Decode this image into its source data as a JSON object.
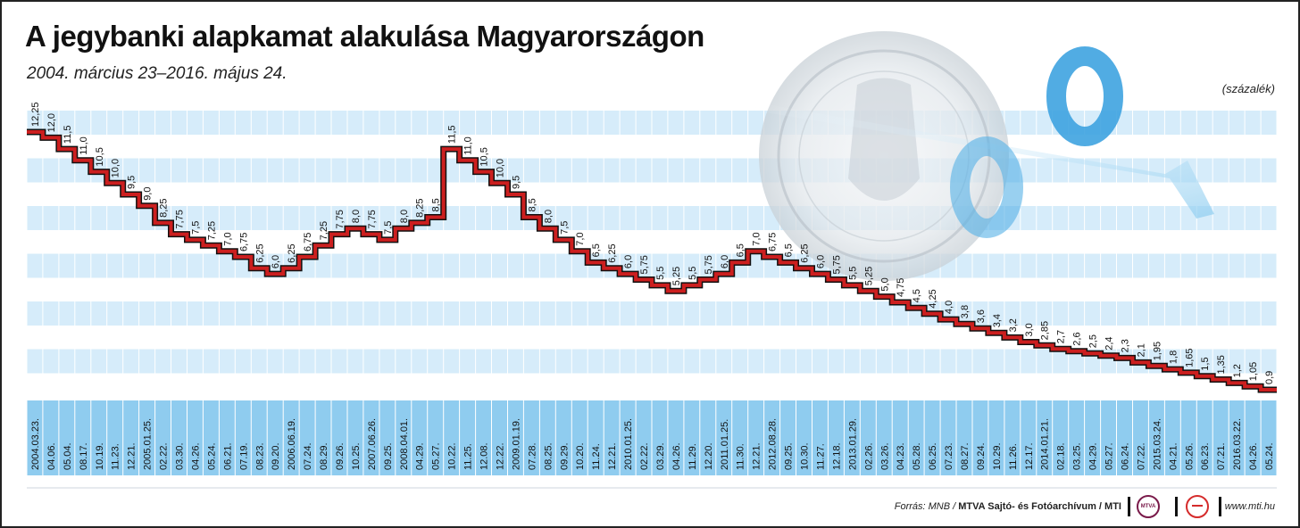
{
  "header": {
    "title": "A jegybanki alapkamat alakulása Magyarországon",
    "subtitle": "2004. március 23–2016. május 24.",
    "unit_label": "(százalék)"
  },
  "footer": {
    "source_prefix": "Forrás: MNB / ",
    "source_bold": "MTVA Sajtó- és Fotóarchívum / MTI",
    "logo_mtva_text": "MTVA",
    "url": "www.mti.hu"
  },
  "colors": {
    "line": "#cc1f1f",
    "band": "#d6ecfa",
    "date_band": "#8fccef",
    "accent": "#3ea3e0"
  },
  "chart_data": {
    "type": "line",
    "step": true,
    "title": "A jegybanki alapkamat alakulása Magyarországon",
    "subtitle": "2004. március 23–2016. május 24.",
    "ylabel": "(százalék)",
    "ylim": [
      0.9,
      12.25
    ],
    "grid": false,
    "series": [
      {
        "x": [
          "2004.03.23.",
          "04.06.",
          "05.04.",
          "08.17.",
          "10.19.",
          "11.23.",
          "12.21.",
          "2005.01.25.",
          "02.22.",
          "03.30.",
          "04.26.",
          "05.24.",
          "06.21.",
          "07.19.",
          "08.23.",
          "09.20.",
          "2006.06.19.",
          "07.24.",
          "08.29.",
          "09.26.",
          "10.25.",
          "2007.06.26.",
          "09.25.",
          "2008.04.01.",
          "04.29.",
          "05.27.",
          "10.22.",
          "11.25.",
          "12.08.",
          "12.22.",
          "2009.01.19.",
          "07.28.",
          "08.25.",
          "09.29.",
          "10.20.",
          "11.24.",
          "12.21.",
          "2010.01.25.",
          "02.22.",
          "03.29.",
          "04.26.",
          "11.29.",
          "12.20.",
          "2011.01.25.",
          "11.30.",
          "12.21.",
          "2012.08.28.",
          "09.25.",
          "10.30.",
          "11.27.",
          "12.18.",
          "2013.01.29.",
          "02.26.",
          "03.26.",
          "04.23.",
          "05.28.",
          "06.25.",
          "07.23.",
          "08.27.",
          "09.24.",
          "10.29.",
          "11.26.",
          "12.17.",
          "2014.01.21.",
          "02.18.",
          "03.25.",
          "04.29.",
          "05.27.",
          "06.24.",
          "07.22.",
          "2015.03.24.",
          "04.21.",
          "05.26.",
          "06.23.",
          "07.21.",
          "2016.03.22.",
          "04.26.",
          "05.24."
        ],
        "values": [
          12.25,
          12.0,
          11.5,
          11.0,
          10.5,
          10.0,
          9.5,
          9.0,
          8.25,
          7.75,
          7.5,
          7.25,
          7.0,
          6.75,
          6.25,
          6.0,
          6.25,
          6.75,
          7.25,
          7.75,
          8.0,
          7.75,
          7.5,
          8.0,
          8.25,
          8.5,
          11.5,
          11.0,
          10.5,
          10.0,
          9.5,
          8.5,
          8.0,
          7.5,
          7.0,
          6.5,
          6.25,
          6.0,
          5.75,
          5.5,
          5.25,
          5.5,
          5.75,
          6.0,
          6.5,
          7.0,
          6.75,
          6.5,
          6.25,
          6.0,
          5.75,
          5.5,
          5.25,
          5.0,
          4.75,
          4.5,
          4.25,
          4.0,
          3.8,
          3.6,
          3.4,
          3.2,
          3.0,
          2.85,
          2.7,
          2.6,
          2.5,
          2.4,
          2.3,
          2.1,
          1.95,
          1.8,
          1.65,
          1.5,
          1.35,
          1.2,
          1.05,
          0.9
        ]
      }
    ]
  }
}
